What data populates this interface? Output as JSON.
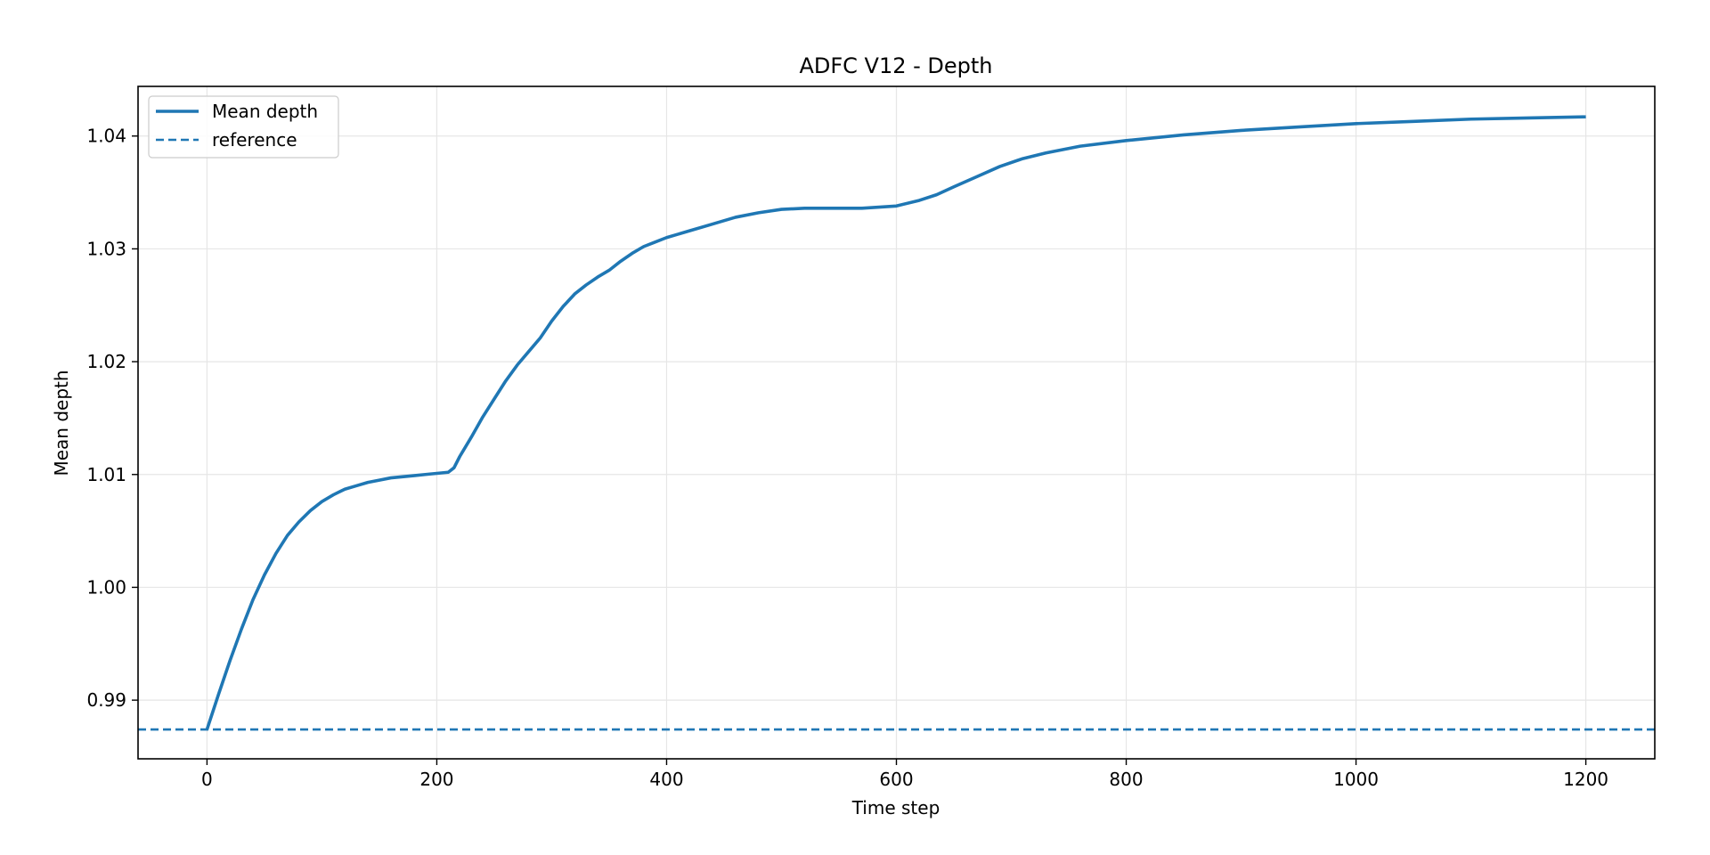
{
  "chart_data": {
    "type": "line",
    "title": "ADFC V12 - Depth",
    "xlabel": "Time step",
    "ylabel": "Mean depth",
    "xlim": [
      -60,
      1260
    ],
    "ylim": [
      0.9848,
      1.0444
    ],
    "xticks": [
      0,
      200,
      400,
      600,
      800,
      1000,
      1200
    ],
    "yticks": [
      0.99,
      1.0,
      1.01,
      1.02,
      1.03,
      1.04
    ],
    "ytick_labels": [
      "0.99",
      "1.00",
      "1.01",
      "1.02",
      "1.03",
      "1.04"
    ],
    "grid": true,
    "legend_position": "top-left",
    "series": [
      {
        "name": "Mean depth",
        "style": "solid",
        "color": "#1f77b4",
        "x": [
          0,
          10,
          20,
          30,
          40,
          50,
          60,
          70,
          80,
          90,
          100,
          110,
          120,
          130,
          140,
          150,
          160,
          170,
          180,
          190,
          200,
          210,
          215,
          220,
          230,
          240,
          250,
          260,
          270,
          280,
          290,
          300,
          310,
          320,
          330,
          340,
          350,
          360,
          370,
          380,
          390,
          400,
          410,
          420,
          440,
          460,
          480,
          500,
          520,
          545,
          570,
          600,
          620,
          635,
          650,
          670,
          690,
          710,
          730,
          760,
          800,
          850,
          900,
          950,
          1000,
          1050,
          1100,
          1150,
          1200
        ],
        "y": [
          0.9874,
          0.9905,
          0.9935,
          0.9963,
          0.9989,
          1.0011,
          1.003,
          1.0046,
          1.0058,
          1.0068,
          1.0076,
          1.0082,
          1.0087,
          1.009,
          1.0093,
          1.0095,
          1.0097,
          1.0098,
          1.0099,
          1.01,
          1.0101,
          1.0102,
          1.0106,
          1.0116,
          1.0133,
          1.0151,
          1.0167,
          1.0183,
          1.0197,
          1.0209,
          1.0221,
          1.0236,
          1.0249,
          1.026,
          1.0268,
          1.0275,
          1.0281,
          1.0289,
          1.0296,
          1.0302,
          1.0306,
          1.031,
          1.0313,
          1.0316,
          1.0322,
          1.0328,
          1.0332,
          1.0335,
          1.0336,
          1.0336,
          1.0336,
          1.0338,
          1.0343,
          1.0348,
          1.0355,
          1.0364,
          1.0373,
          1.038,
          1.0385,
          1.0391,
          1.0396,
          1.0401,
          1.0405,
          1.0408,
          1.0411,
          1.0413,
          1.0415,
          1.0416,
          1.0417
        ]
      },
      {
        "name": "reference",
        "style": "dashed",
        "color": "#1f77b4",
        "x": [
          -60,
          1260
        ],
        "y": [
          0.9874,
          0.9874
        ]
      }
    ]
  }
}
